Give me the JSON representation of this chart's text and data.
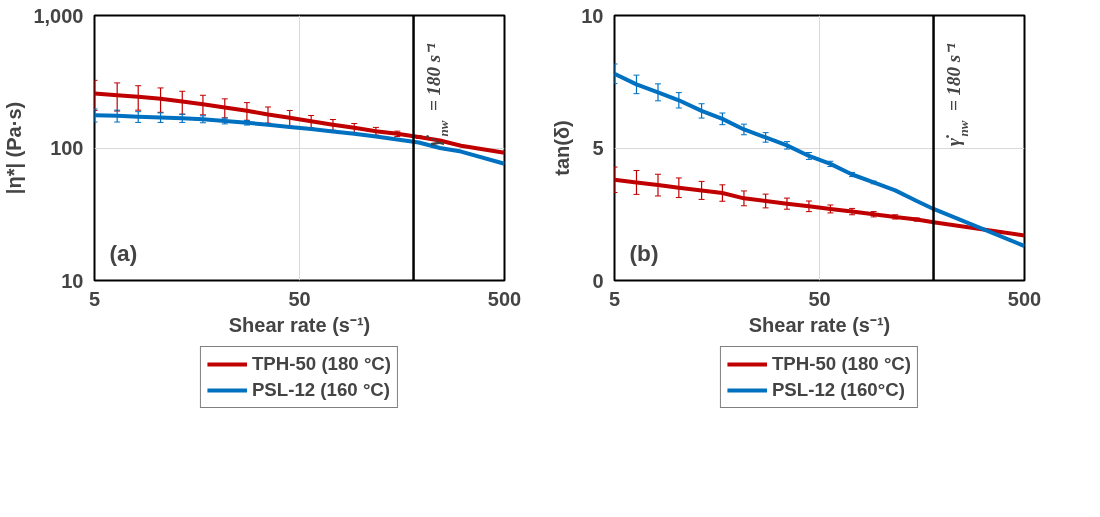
{
  "chart_data": [
    {
      "type": "line",
      "xlabel": "Shear rate (s⁻¹)",
      "ylabel": "|η*| (Pa·s)",
      "log": "xy",
      "xlim": [
        5,
        500
      ],
      "xticks": [
        5,
        50,
        500
      ],
      "ylim": [
        10,
        1000
      ],
      "yticks": [
        10,
        100,
        {
          "value": 1000,
          "label": "1,000"
        }
      ],
      "grid": true,
      "legend": "bottom",
      "marker": "none",
      "line_style": "solid",
      "ref_lines": [
        {
          "axis": "x",
          "value": 180,
          "label": "γ̇$_{nw}$ = 180 s⁻¹",
          "color": "#000000"
        }
      ],
      "annotations": [
        {
          "text": "(a)"
        }
      ],
      "series": [
        {
          "name": "TPH-50 (180 °C)",
          "color": "#c00000",
          "x": [
            5,
            6.45,
            8.17,
            10.5,
            13.4,
            16.9,
            21.6,
            27.7,
            35.1,
            44.8,
            57,
            72.8,
            92.5,
            118,
            150,
            191,
            242,
            307,
            500
          ],
          "values": [
            258,
            250,
            244,
            235,
            224,
            214,
            202,
            191,
            179,
            169,
            159,
            150,
            142,
            134,
            128,
            121,
            114,
            104,
            92
          ],
          "errors": [
            66,
            60,
            51,
            49,
            44,
            36,
            33,
            29,
            25,
            23,
            17,
            14,
            11,
            9,
            6,
            3,
            2,
            null,
            null
          ]
        },
        {
          "name": "PSL-12 (160 °C)",
          "color": "#0070c0",
          "x": [
            5,
            6.45,
            8.17,
            10.5,
            13.4,
            16.9,
            21.6,
            27.7,
            35.1,
            44.8,
            57,
            72.8,
            92.5,
            118,
            150,
            191,
            242,
            307,
            500
          ],
          "values": [
            177,
            175,
            172,
            170,
            168,
            165,
            160,
            155,
            150,
            144,
            139,
            133,
            128,
            122,
            116,
            110,
            100,
            94,
            76
          ],
          "errors": [
            20,
            18,
            16,
            14,
            12,
            10,
            8,
            6,
            null,
            null,
            null,
            null,
            null,
            null,
            null,
            null,
            null,
            null,
            null
          ]
        }
      ]
    },
    {
      "type": "line",
      "xlabel": "Shear rate (s⁻¹)",
      "ylabel": "tan(δ)",
      "log": "x",
      "xlim": [
        5,
        500
      ],
      "xticks": [
        5,
        50,
        500
      ],
      "ylim": [
        0,
        10
      ],
      "yticks": [
        0,
        5,
        10
      ],
      "grid": true,
      "legend": "bottom",
      "marker": "none",
      "line_style": "solid",
      "ref_lines": [
        {
          "axis": "x",
          "value": 180,
          "label": "γ̇$_{nw}$ = 180 s⁻¹",
          "color": "#000000"
        }
      ],
      "annotations": [
        {
          "text": "(b)"
        }
      ],
      "series": [
        {
          "name": "TPH-50 (180 °C)",
          "color": "#c00000",
          "x": [
            5,
            6.4,
            8.15,
            10.3,
            13.3,
            16.8,
            21.4,
            27.3,
            34.7,
            44.4,
            56.5,
            72.1,
            91.8,
            117,
            149,
            180,
            500
          ],
          "values": [
            3.8,
            3.7,
            3.6,
            3.5,
            3.4,
            3.3,
            3.1,
            3.0,
            2.9,
            2.8,
            2.7,
            2.6,
            2.5,
            2.4,
            2.3,
            2.2,
            1.7
          ],
          "errors": [
            0.48,
            0.45,
            0.41,
            0.37,
            0.34,
            0.31,
            0.28,
            0.26,
            0.21,
            0.2,
            0.15,
            0.12,
            0.1,
            0.08,
            0.06,
            null,
            null
          ]
        },
        {
          "name": "PSL-12 (160°C)",
          "color": "#0070c0",
          "x": [
            5,
            6.4,
            8.15,
            10.3,
            13.3,
            16.8,
            21.4,
            27.3,
            34.7,
            44.4,
            56.5,
            72.1,
            91.8,
            117,
            149,
            180,
            500
          ],
          "values": [
            7.8,
            7.4,
            7.1,
            6.8,
            6.4,
            6.1,
            5.7,
            5.4,
            5.1,
            4.7,
            4.4,
            4.0,
            3.7,
            3.4,
            3.0,
            2.7,
            1.3
          ],
          "errors": [
            0.37,
            0.35,
            0.32,
            0.29,
            0.27,
            0.22,
            0.2,
            0.18,
            0.14,
            0.13,
            0.1,
            0.08,
            0.05,
            null,
            null,
            null,
            null
          ]
        }
      ]
    }
  ]
}
